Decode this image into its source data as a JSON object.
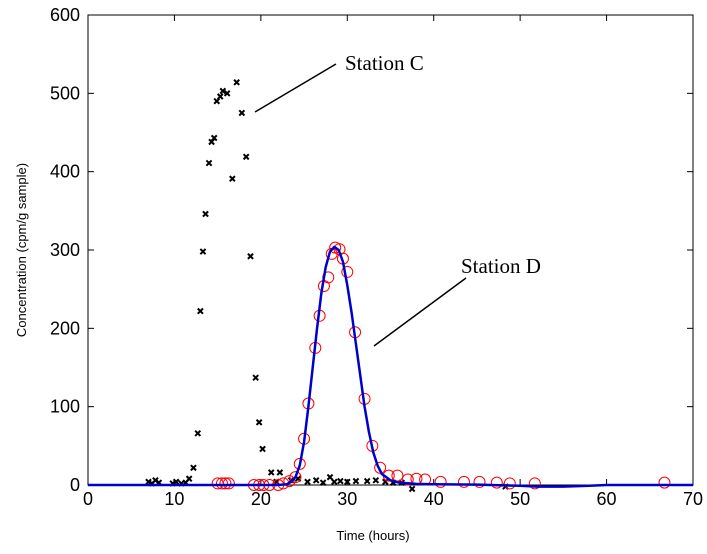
{
  "chart_data": {
    "type": "scatter",
    "title": "",
    "xlabel": "Time     (hours)",
    "ylabel": "Concentration  (cpm/g sample)",
    "xlim": [
      0,
      70
    ],
    "ylim": [
      0,
      600
    ],
    "xticks": [
      0,
      10,
      20,
      30,
      40,
      50,
      60,
      70
    ],
    "yticks": [
      0,
      100,
      200,
      300,
      400,
      500,
      600
    ],
    "grid": false,
    "legend": "none",
    "annotations": [
      {
        "text": "Station C",
        "target": [
          19.5,
          475
        ]
      },
      {
        "text": "Station D",
        "target": [
          33.5,
          180
        ]
      }
    ],
    "series": [
      {
        "marker": "x",
        "color": "#000000",
        "points": [
          [
            7.0,
            4
          ],
          [
            7.4,
            2
          ],
          [
            7.8,
            6
          ],
          [
            8.2,
            3
          ],
          [
            9.8,
            2
          ],
          [
            10.2,
            4
          ],
          [
            10.8,
            2
          ],
          [
            11.3,
            3
          ],
          [
            11.7,
            8
          ],
          [
            12.2,
            22
          ],
          [
            12.7,
            66
          ],
          [
            13.0,
            222
          ],
          [
            13.3,
            298
          ],
          [
            13.6,
            346
          ],
          [
            14.0,
            411
          ],
          [
            14.3,
            438
          ],
          [
            14.6,
            443
          ],
          [
            14.9,
            490
          ],
          [
            15.3,
            496
          ],
          [
            15.6,
            503
          ],
          [
            16.1,
            500
          ],
          [
            16.7,
            391
          ],
          [
            17.2,
            514
          ],
          [
            17.8,
            475
          ],
          [
            18.3,
            419
          ],
          [
            18.8,
            292
          ],
          [
            19.4,
            137
          ],
          [
            19.8,
            80
          ],
          [
            20.2,
            46
          ],
          [
            21.2,
            16
          ],
          [
            21.8,
            4
          ],
          [
            22.2,
            16
          ],
          [
            23.5,
            6
          ],
          [
            24.3,
            8
          ],
          [
            25.4,
            4
          ],
          [
            26.4,
            6
          ],
          [
            27.2,
            3
          ],
          [
            28.0,
            10
          ],
          [
            28.5,
            4
          ],
          [
            29.2,
            5
          ],
          [
            30.0,
            4
          ],
          [
            31.0,
            5
          ],
          [
            32.3,
            5
          ],
          [
            33.3,
            6
          ],
          [
            34.4,
            4
          ],
          [
            35.3,
            3
          ],
          [
            36.3,
            3
          ],
          [
            37.5,
            -5
          ],
          [
            48.3,
            -2
          ]
        ]
      },
      {
        "marker": "o",
        "color": "#ff0000",
        "points": [
          [
            15.0,
            2
          ],
          [
            15.5,
            2
          ],
          [
            15.9,
            2
          ],
          [
            16.3,
            2
          ],
          [
            19.2,
            0
          ],
          [
            19.8,
            0
          ],
          [
            20.3,
            0
          ],
          [
            21.0,
            0
          ],
          [
            22.0,
            0
          ],
          [
            22.6,
            2
          ],
          [
            23.3,
            5
          ],
          [
            24.0,
            10
          ],
          [
            24.5,
            27
          ],
          [
            25.0,
            59
          ],
          [
            25.5,
            104
          ],
          [
            26.3,
            175
          ],
          [
            26.8,
            216
          ],
          [
            27.3,
            254
          ],
          [
            27.8,
            265
          ],
          [
            28.2,
            295
          ],
          [
            28.6,
            303
          ],
          [
            29.1,
            301
          ],
          [
            29.5,
            289
          ],
          [
            30.0,
            272
          ],
          [
            30.9,
            195
          ],
          [
            32.0,
            110
          ],
          [
            32.9,
            50
          ],
          [
            33.8,
            22
          ],
          [
            34.8,
            12
          ],
          [
            35.8,
            12
          ],
          [
            37.0,
            7
          ],
          [
            38.0,
            8
          ],
          [
            39.0,
            7
          ],
          [
            40.8,
            4
          ],
          [
            43.5,
            4
          ],
          [
            45.3,
            4
          ],
          [
            47.3,
            3
          ],
          [
            48.8,
            2
          ],
          [
            51.7,
            2
          ],
          [
            66.7,
            3
          ]
        ]
      },
      {
        "type": "line",
        "color": "#0000cc",
        "points": [
          [
            0,
            0
          ],
          [
            20,
            0
          ],
          [
            22,
            0
          ],
          [
            23,
            1
          ],
          [
            23.5,
            4
          ],
          [
            24,
            10
          ],
          [
            24.5,
            25
          ],
          [
            25,
            55
          ],
          [
            25.5,
            100
          ],
          [
            26,
            150
          ],
          [
            26.5,
            200
          ],
          [
            27,
            245
          ],
          [
            27.5,
            278
          ],
          [
            28,
            298
          ],
          [
            28.5,
            304
          ],
          [
            29,
            300
          ],
          [
            29.5,
            285
          ],
          [
            30,
            255
          ],
          [
            30.5,
            220
          ],
          [
            31,
            180
          ],
          [
            31.5,
            140
          ],
          [
            32,
            100
          ],
          [
            32.5,
            68
          ],
          [
            33,
            42
          ],
          [
            33.5,
            25
          ],
          [
            34,
            14
          ],
          [
            35,
            6
          ],
          [
            36,
            3
          ],
          [
            38,
            1.5
          ],
          [
            40,
            1
          ],
          [
            45,
            0.5
          ],
          [
            50,
            -1
          ],
          [
            52,
            -2
          ],
          [
            55,
            -2
          ],
          [
            58,
            -1
          ],
          [
            60,
            0
          ],
          [
            65,
            0
          ],
          [
            70,
            0
          ]
        ]
      }
    ]
  }
}
